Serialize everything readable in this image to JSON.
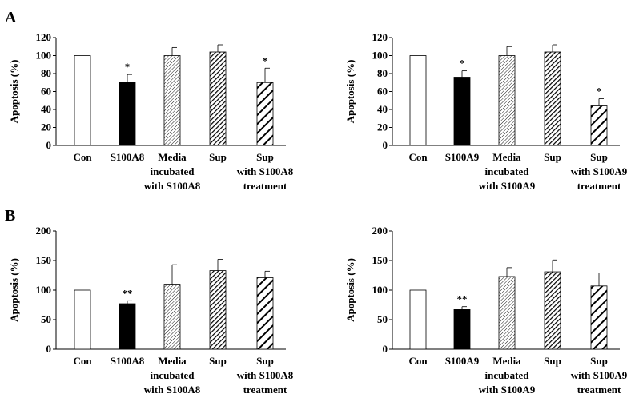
{
  "panel_labels": [
    "A",
    "B"
  ],
  "chart_data": [
    {
      "type": "bar",
      "panel": "A",
      "ylabel": "Apoptosis (%)",
      "ylim": [
        0,
        120
      ],
      "yticks": [
        0,
        20,
        40,
        60,
        80,
        100,
        120
      ],
      "categories": [
        [
          "Con"
        ],
        [
          "S100A8"
        ],
        [
          "Media",
          "incubated",
          "with S100A8"
        ],
        [
          "Sup"
        ],
        [
          "Sup",
          "with S100A8",
          "treatment"
        ]
      ],
      "values": [
        100,
        70,
        100,
        104,
        70
      ],
      "errors": [
        0,
        9,
        9,
        8,
        16
      ],
      "significance": [
        "",
        "*",
        "",
        "",
        "*"
      ],
      "fills": [
        "white",
        "black",
        "fine-hatch",
        "dense-hatch",
        "wide-hatch"
      ]
    },
    {
      "type": "bar",
      "panel": "A",
      "ylabel": "Apoptosis (%)",
      "ylim": [
        0,
        120
      ],
      "yticks": [
        0,
        20,
        40,
        60,
        80,
        100,
        120
      ],
      "categories": [
        [
          "Con"
        ],
        [
          "S100A9"
        ],
        [
          "Media",
          "incubated",
          "with S100A9"
        ],
        [
          "Sup"
        ],
        [
          "Sup",
          "with S100A9",
          "treatment"
        ]
      ],
      "values": [
        100,
        76,
        100,
        104,
        44
      ],
      "errors": [
        0,
        7,
        10,
        8,
        8
      ],
      "significance": [
        "",
        "*",
        "",
        "",
        "*"
      ],
      "fills": [
        "white",
        "black",
        "fine-hatch",
        "dense-hatch",
        "wide-hatch"
      ]
    },
    {
      "type": "bar",
      "panel": "B",
      "ylabel": "Apoptosis (%)",
      "ylim": [
        0,
        200
      ],
      "yticks": [
        0,
        50,
        100,
        150,
        200
      ],
      "categories": [
        [
          "Con"
        ],
        [
          "S100A8"
        ],
        [
          "Media",
          "incubated",
          "with S100A8"
        ],
        [
          "Sup"
        ],
        [
          "Sup",
          "with S100A8",
          "treatment"
        ]
      ],
      "values": [
        100,
        77,
        110,
        133,
        121
      ],
      "errors": [
        0,
        5,
        33,
        19,
        11
      ],
      "significance": [
        "",
        "**",
        "",
        "",
        ""
      ],
      "fills": [
        "white",
        "black",
        "fine-hatch",
        "dense-hatch",
        "wide-hatch"
      ]
    },
    {
      "type": "bar",
      "panel": "B",
      "ylabel": "Apoptosis (%)",
      "ylim": [
        0,
        200
      ],
      "yticks": [
        0,
        50,
        100,
        150,
        200
      ],
      "categories": [
        [
          "Con"
        ],
        [
          "S100A9"
        ],
        [
          "Media",
          "incubated",
          "with S100A9"
        ],
        [
          "Sup"
        ],
        [
          "Sup",
          "with S100A9",
          "treatment"
        ]
      ],
      "values": [
        100,
        67,
        123,
        131,
        107
      ],
      "errors": [
        0,
        5,
        15,
        20,
        22
      ],
      "significance": [
        "",
        "**",
        "",
        "",
        ""
      ],
      "fills": [
        "white",
        "black",
        "fine-hatch",
        "dense-hatch",
        "wide-hatch"
      ]
    }
  ]
}
